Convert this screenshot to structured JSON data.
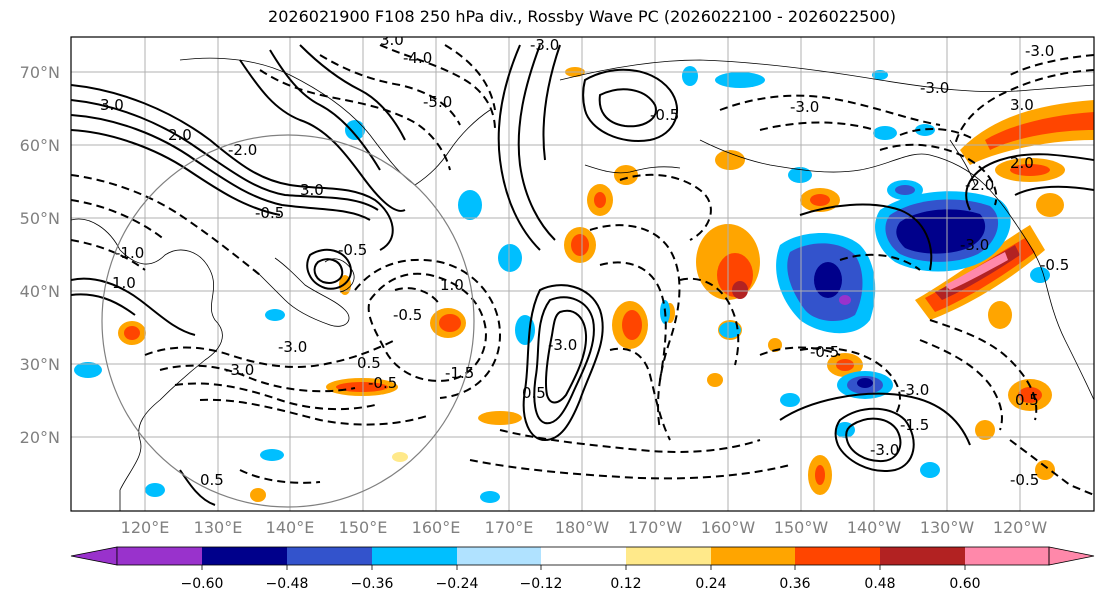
{
  "title": "2026021900 F108 250 hPa div., Rossby Wave PC (2026022100 - 2026022500)",
  "lat_labels": [
    "70°N",
    "60°N",
    "50°N",
    "40°N",
    "30°N",
    "20°N"
  ],
  "lon_labels": [
    "120°E",
    "130°E",
    "140°E",
    "150°E",
    "160°E",
    "170°E",
    "180°W",
    "170°W",
    "160°W",
    "150°W",
    "140°W",
    "130°W",
    "120°W"
  ],
  "colorbar": {
    "ticks": [
      "−0.60",
      "−0.48",
      "−0.36",
      "−0.24",
      "−0.12",
      "0.12",
      "0.24",
      "0.36",
      "0.48",
      "0.60"
    ],
    "colors": [
      "#9932cc",
      "#00008b",
      "#3353cc",
      "#00bfff",
      "#b0e2ff",
      "#ffffff",
      "#ffe98a",
      "#ffa500",
      "#ff4500",
      "#b22222",
      "#ff88aa"
    ]
  },
  "contour_labels": [
    "-4.0",
    "-5.0",
    "-3.0",
    "-3.0",
    "-3.0",
    "3.0",
    "2.0",
    "-2.0",
    "3.0",
    "-0.5",
    "-0.5",
    "1.0",
    "-1.0",
    "-0.5",
    "-3.0",
    "-3.0",
    "0.5",
    "-0.5",
    "1.0",
    "-1.5",
    "0.5",
    "-3.0",
    "0.5",
    "2.0",
    "-2.0",
    "-0.5",
    "-3.0",
    "3.0",
    "-1.5",
    "0.5",
    "-0.5",
    "-3.0",
    "-3.0",
    "-3.0",
    "-0.5",
    "-0.5",
    "3.0"
  ],
  "legend": {
    "shading": "250 hPa divergence (Rossby Wave PC)",
    "contours": "solid = positive, dashed = negative"
  }
}
